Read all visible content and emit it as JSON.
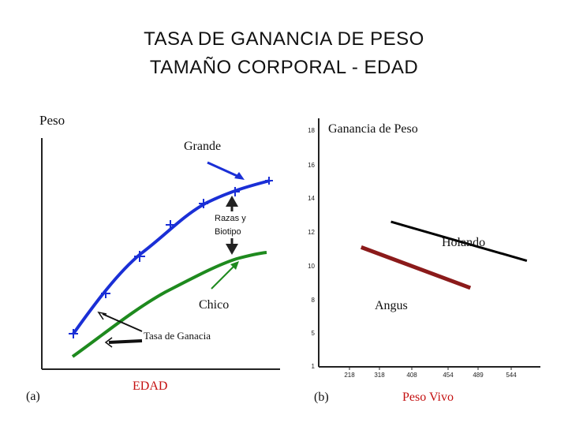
{
  "slide": {
    "title_line1": "TASA DE GANANCIA DE PESO",
    "title_line2": "TAMAÑO CORPORAL - EDAD"
  },
  "chart_data": [
    {
      "panel": "(a)",
      "type": "line",
      "ylabel": "Peso",
      "xlabel": "EDAD",
      "series": [
        {
          "name": "Grande",
          "color": "#1a2fd6"
        },
        {
          "name": "Chico",
          "color": "#1e8a1e"
        }
      ],
      "annotations": [
        "Razas y",
        "Biotipo",
        "Tasa de Ganacia"
      ]
    },
    {
      "panel": "(b)",
      "type": "line",
      "ylabel": "Ganancia de Peso",
      "xlabel": "Peso Vivo",
      "x_ticks": [
        "218",
        "318",
        "408",
        "454",
        "489",
        "544"
      ],
      "y_ticks": [
        "1",
        "5",
        "8",
        "10",
        "12",
        "14",
        "16",
        "18"
      ],
      "series": [
        {
          "name": "Holando",
          "color": "#000000",
          "points": [
            [
              350,
              12.6
            ],
            [
              570,
              10.3
            ]
          ]
        },
        {
          "name": "Angus",
          "color": "#8b1a1a",
          "points": [
            [
              257,
              11.1
            ],
            [
              480,
              8.7
            ]
          ]
        }
      ]
    }
  ]
}
